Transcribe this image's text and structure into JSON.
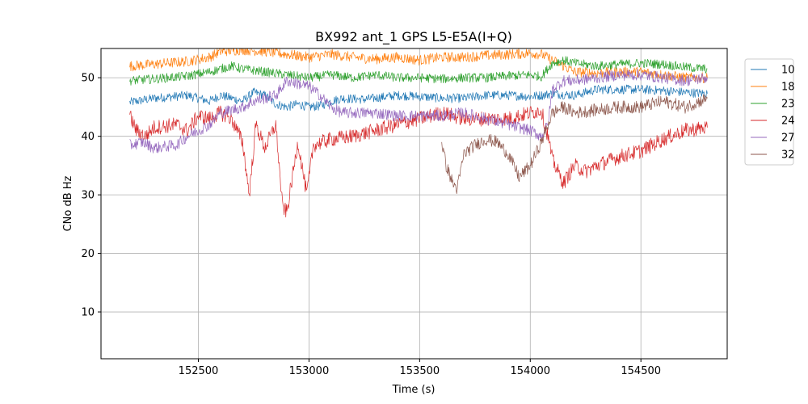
{
  "chart_data": {
    "type": "line",
    "title": "BX992 ant_1 GPS L5-E5A(I+Q)",
    "xlabel": "Time (s)",
    "ylabel": "CNo dB Hz",
    "xlim": [
      152060,
      154890
    ],
    "ylim": [
      2,
      55
    ],
    "xticks": [
      152500,
      153000,
      153500,
      154000,
      154500
    ],
    "yticks": [
      10,
      20,
      30,
      40,
      50
    ],
    "grid": true,
    "legend_position": "right-outside-top",
    "series": [
      {
        "name": "10",
        "color": "#1f77b4",
        "noise": 0.8,
        "points": [
          [
            152190,
            45.8
          ],
          [
            152300,
            46.5
          ],
          [
            152450,
            47
          ],
          [
            152550,
            46
          ],
          [
            152600,
            47
          ],
          [
            152650,
            46.5
          ],
          [
            152700,
            46
          ],
          [
            152750,
            47.5
          ],
          [
            152800,
            47
          ],
          [
            152850,
            45.5
          ],
          [
            152900,
            45
          ],
          [
            152950,
            45.5
          ],
          [
            153000,
            45
          ],
          [
            153050,
            45.2
          ],
          [
            153100,
            46
          ],
          [
            153150,
            46.5
          ],
          [
            153250,
            46.3
          ],
          [
            153400,
            47
          ],
          [
            153500,
            46.8
          ],
          [
            153600,
            46.5
          ],
          [
            153700,
            46.5
          ],
          [
            153800,
            47
          ],
          [
            153900,
            47
          ],
          [
            154000,
            46.8
          ],
          [
            154050,
            47
          ],
          [
            154100,
            47.3
          ],
          [
            154200,
            47
          ],
          [
            154300,
            48
          ],
          [
            154400,
            48
          ],
          [
            154500,
            48
          ],
          [
            154600,
            47.8
          ],
          [
            154700,
            47.5
          ],
          [
            154800,
            47.3
          ]
        ]
      },
      {
        "name": "18",
        "color": "#ff7f0e",
        "noise": 0.9,
        "points": [
          [
            152190,
            52
          ],
          [
            152300,
            52.3
          ],
          [
            152450,
            52.8
          ],
          [
            152550,
            53.5
          ],
          [
            152600,
            54.5
          ],
          [
            152700,
            54.8
          ],
          [
            152800,
            54.5
          ],
          [
            152900,
            54
          ],
          [
            153000,
            53.5
          ],
          [
            153100,
            54
          ],
          [
            153200,
            53.5
          ],
          [
            153300,
            53.2
          ],
          [
            153400,
            53.5
          ],
          [
            153500,
            53
          ],
          [
            153600,
            53.5
          ],
          [
            153700,
            53.5
          ],
          [
            153800,
            53.8
          ],
          [
            153900,
            54
          ],
          [
            154000,
            54.2
          ],
          [
            154050,
            54
          ],
          [
            154100,
            53
          ],
          [
            154150,
            52
          ],
          [
            154200,
            51
          ],
          [
            154300,
            50.8
          ],
          [
            154400,
            51
          ],
          [
            154500,
            51
          ],
          [
            154600,
            50.5
          ],
          [
            154700,
            50
          ],
          [
            154800,
            50
          ]
        ]
      },
      {
        "name": "23",
        "color": "#2ca02c",
        "noise": 0.8,
        "points": [
          [
            152190,
            49.5
          ],
          [
            152300,
            49.8
          ],
          [
            152450,
            50.3
          ],
          [
            152550,
            51
          ],
          [
            152600,
            51.5
          ],
          [
            152650,
            52
          ],
          [
            152700,
            51.5
          ],
          [
            152800,
            51
          ],
          [
            152900,
            50.5
          ],
          [
            153000,
            50
          ],
          [
            153100,
            50.5
          ],
          [
            153200,
            50
          ],
          [
            153300,
            50.5
          ],
          [
            153400,
            50
          ],
          [
            153500,
            50
          ],
          [
            153600,
            49.8
          ],
          [
            153700,
            50
          ],
          [
            153800,
            50
          ],
          [
            153900,
            50.3
          ],
          [
            154000,
            50.5
          ],
          [
            154050,
            50.2
          ],
          [
            154100,
            52.5
          ],
          [
            154150,
            53
          ],
          [
            154200,
            52.5
          ],
          [
            154300,
            52
          ],
          [
            154400,
            52.3
          ],
          [
            154500,
            52.5
          ],
          [
            154600,
            52.3
          ],
          [
            154700,
            51.8
          ],
          [
            154800,
            51.5
          ]
        ]
      },
      {
        "name": "24",
        "color": "#d62728",
        "noise": 1.3,
        "points": [
          [
            152190,
            43.5
          ],
          [
            152220,
            41
          ],
          [
            152260,
            40
          ],
          [
            152300,
            41.5
          ],
          [
            152400,
            42
          ],
          [
            152450,
            41
          ],
          [
            152500,
            43.5
          ],
          [
            152550,
            43
          ],
          [
            152600,
            44
          ],
          [
            152650,
            43
          ],
          [
            152700,
            39
          ],
          [
            152730,
            30
          ],
          [
            152760,
            42
          ],
          [
            152800,
            38
          ],
          [
            152850,
            42
          ],
          [
            152880,
            28
          ],
          [
            152900,
            27
          ],
          [
            152950,
            39
          ],
          [
            152990,
            30
          ],
          [
            153020,
            38.5
          ],
          [
            153100,
            39.5
          ],
          [
            153200,
            40
          ],
          [
            153300,
            41
          ],
          [
            153400,
            42
          ],
          [
            153500,
            43
          ],
          [
            153600,
            44
          ],
          [
            153700,
            43
          ],
          [
            153800,
            43
          ],
          [
            153900,
            43
          ],
          [
            154000,
            44
          ],
          [
            154050,
            44.5
          ],
          [
            154080,
            40
          ],
          [
            154100,
            36
          ],
          [
            154150,
            32
          ],
          [
            154200,
            35
          ],
          [
            154250,
            34
          ],
          [
            154300,
            35
          ],
          [
            154400,
            36.5
          ],
          [
            154500,
            37.5
          ],
          [
            154600,
            39.5
          ],
          [
            154700,
            41
          ],
          [
            154800,
            41.5
          ]
        ]
      },
      {
        "name": "27",
        "color": "#9467bd",
        "noise": 1.0,
        "points": [
          [
            152190,
            38.5
          ],
          [
            152250,
            39
          ],
          [
            152300,
            38
          ],
          [
            152400,
            38.5
          ],
          [
            152450,
            40
          ],
          [
            152500,
            41
          ],
          [
            152550,
            42
          ],
          [
            152600,
            44
          ],
          [
            152650,
            44.5
          ],
          [
            152700,
            45
          ],
          [
            152750,
            46
          ],
          [
            152800,
            46.5
          ],
          [
            152850,
            47
          ],
          [
            152900,
            49.5
          ],
          [
            152950,
            49
          ],
          [
            153000,
            48.5
          ],
          [
            153050,
            47
          ],
          [
            153100,
            45
          ],
          [
            153150,
            44
          ],
          [
            153200,
            44
          ],
          [
            153300,
            44
          ],
          [
            153400,
            43.5
          ],
          [
            153500,
            43.5
          ],
          [
            153600,
            43.5
          ],
          [
            153700,
            44
          ],
          [
            153800,
            43
          ],
          [
            153900,
            42
          ],
          [
            154000,
            41
          ],
          [
            154050,
            40
          ],
          [
            154080,
            42
          ],
          [
            154100,
            48
          ],
          [
            154150,
            49.5
          ],
          [
            154200,
            49.5
          ],
          [
            154300,
            50
          ],
          [
            154400,
            50.5
          ],
          [
            154500,
            50.5
          ],
          [
            154600,
            50
          ],
          [
            154700,
            49.5
          ],
          [
            154800,
            50
          ]
        ]
      },
      {
        "name": "32",
        "color": "#8c564b",
        "noise": 1.1,
        "points": [
          [
            153600,
            39
          ],
          [
            153620,
            35
          ],
          [
            153650,
            32
          ],
          [
            153670,
            31
          ],
          [
            153700,
            37
          ],
          [
            153750,
            38.5
          ],
          [
            153800,
            39.5
          ],
          [
            153850,
            39
          ],
          [
            153900,
            37
          ],
          [
            153950,
            33
          ],
          [
            154000,
            35
          ],
          [
            154050,
            39
          ],
          [
            154100,
            44
          ],
          [
            154150,
            45
          ],
          [
            154200,
            44
          ],
          [
            154300,
            44.5
          ],
          [
            154400,
            45
          ],
          [
            154500,
            45
          ],
          [
            154600,
            46
          ],
          [
            154700,
            45
          ],
          [
            154800,
            46.5
          ]
        ]
      }
    ]
  }
}
